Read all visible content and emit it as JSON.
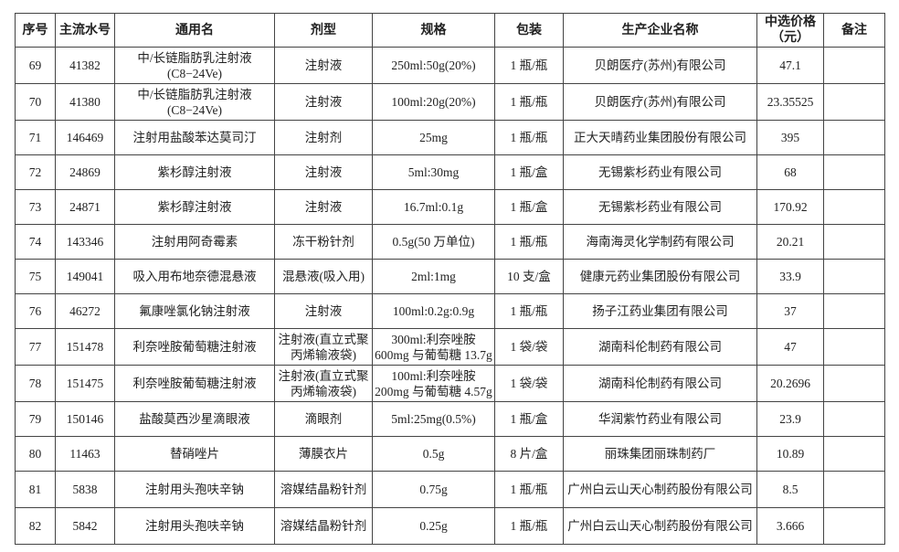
{
  "headers": [
    "序号",
    "主流水号",
    "通用名",
    "剂型",
    "规格",
    "包装",
    "生产企业名称",
    "中选价格（元）",
    "备注"
  ],
  "rows": [
    [
      "69",
      "41382",
      "中/长链脂肪乳注射液(C8−24Ve)",
      "注射液",
      "250ml:50g(20%)",
      "1 瓶/瓶",
      "贝朗医疗(苏州)有限公司",
      "47.1",
      ""
    ],
    [
      "70",
      "41380",
      "中/长链脂肪乳注射液(C8−24Ve)",
      "注射液",
      "100ml:20g(20%)",
      "1 瓶/瓶",
      "贝朗医疗(苏州)有限公司",
      "23.35525",
      ""
    ],
    [
      "71",
      "146469",
      "注射用盐酸苯达莫司汀",
      "注射剂",
      "25mg",
      "1 瓶/瓶",
      "正大天晴药业集团股份有限公司",
      "395",
      ""
    ],
    [
      "72",
      "24869",
      "紫杉醇注射液",
      "注射液",
      "5ml:30mg",
      "1 瓶/盒",
      "无锡紫杉药业有限公司",
      "68",
      ""
    ],
    [
      "73",
      "24871",
      "紫杉醇注射液",
      "注射液",
      "16.7ml:0.1g",
      "1 瓶/盒",
      "无锡紫杉药业有限公司",
      "170.92",
      ""
    ],
    [
      "74",
      "143346",
      "注射用阿奇霉素",
      "冻干粉针剂",
      "0.5g(50 万单位)",
      "1 瓶/瓶",
      "海南海灵化学制药有限公司",
      "20.21",
      ""
    ],
    [
      "75",
      "149041",
      "吸入用布地奈德混悬液",
      "混悬液(吸入用)",
      "2ml:1mg",
      "10 支/盒",
      "健康元药业集团股份有限公司",
      "33.9",
      ""
    ],
    [
      "76",
      "46272",
      "氟康唑氯化钠注射液",
      "注射液",
      "100ml:0.2g:0.9g",
      "1 瓶/瓶",
      "扬子江药业集团有限公司",
      "37",
      ""
    ],
    [
      "77",
      "151478",
      "利奈唑胺葡萄糖注射液",
      "注射液(直立式聚丙烯输液袋)",
      "300ml:利奈唑胺 600mg 与葡萄糖 13.7g",
      "1 袋/袋",
      "湖南科伦制药有限公司",
      "47",
      ""
    ],
    [
      "78",
      "151475",
      "利奈唑胺葡萄糖注射液",
      "注射液(直立式聚丙烯输液袋)",
      "100ml:利奈唑胺 200mg 与葡萄糖 4.57g",
      "1 袋/袋",
      "湖南科伦制药有限公司",
      "20.2696",
      ""
    ],
    [
      "79",
      "150146",
      "盐酸莫西沙星滴眼液",
      "滴眼剂",
      "5ml:25mg(0.5%)",
      "1 瓶/盒",
      "华润紫竹药业有限公司",
      "23.9",
      ""
    ],
    [
      "80",
      "11463",
      "替硝唑片",
      "薄膜衣片",
      "0.5g",
      "8 片/盒",
      "丽珠集团丽珠制药厂",
      "10.89",
      ""
    ],
    [
      "81",
      "5838",
      "注射用头孢呋辛钠",
      "溶媒结晶粉针剂",
      "0.75g",
      "1 瓶/瓶",
      "广州白云山天心制药股份有限公司",
      "8.5",
      ""
    ],
    [
      "82",
      "5842",
      "注射用头孢呋辛钠",
      "溶媒结晶粉针剂",
      "0.25g",
      "1 瓶/瓶",
      "广州白云山天心制药股份有限公司",
      "3.666",
      ""
    ]
  ]
}
